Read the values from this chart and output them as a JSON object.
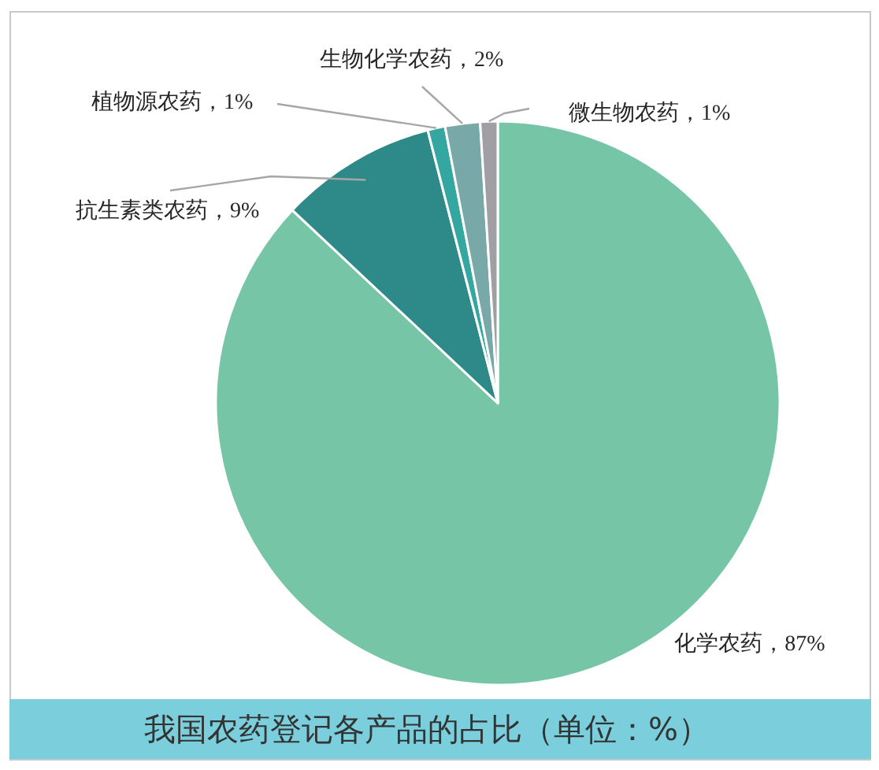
{
  "chart_data": {
    "type": "pie",
    "title": "我国农药登记各产品的占比（单位：%）",
    "categories": [
      "化学农药",
      "抗生素类农药",
      "植物源农药",
      "生物化学农药",
      "微生物农药"
    ],
    "values": [
      87,
      9,
      1,
      2,
      1
    ],
    "colors": [
      "#75c5a6",
      "#2e8a89",
      "#34a8a0",
      "#79a8a8",
      "#a0a0a4"
    ],
    "value_labels": [
      "87%",
      "9%",
      "1%",
      "2%",
      "1%"
    ]
  }
}
